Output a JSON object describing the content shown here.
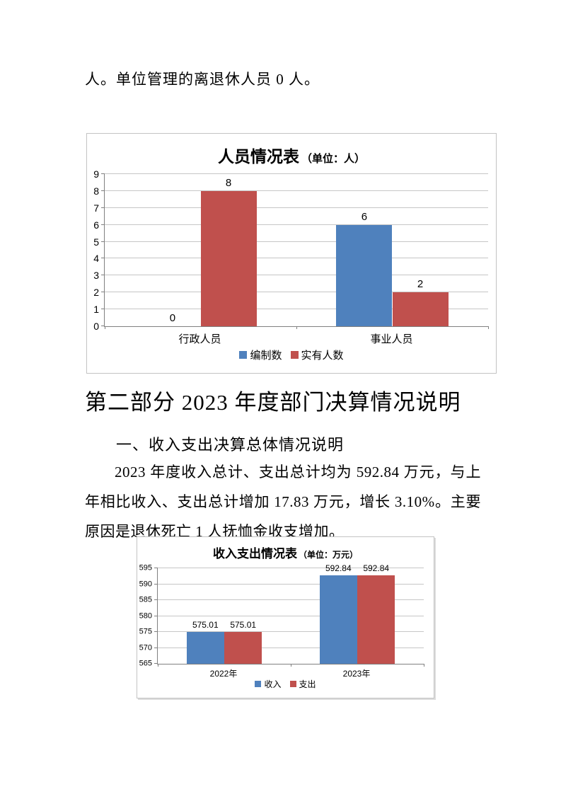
{
  "page": {
    "top_text": "人。单位管理的离退休人员 0 人。",
    "section_heading": "第二部分 2023 年度部门决算情况说明",
    "subsection_heading": "一、收入支出决算总体情况说明",
    "paragraph_lines": [
      "2023 年度收入总计、支出总计均为 592.84 万元，与上",
      "年相比收入、支出总计增加 17.83 万元，增长 3.10%。主要",
      "原因是退休死亡 1 人抚恤金收支增加。"
    ]
  },
  "colors": {
    "series_blue": "#4F81BD",
    "series_red": "#C0504D",
    "gridline": "#C6C6C6",
    "axis": "#808080"
  },
  "chart_data": [
    {
      "type": "bar",
      "title": "人员情况表",
      "title_unit": "（单位：人）",
      "categories": [
        "行政人员",
        "事业人员"
      ],
      "series": [
        {
          "name": "编制数",
          "color": "#4F81BD",
          "values": [
            0,
            6
          ],
          "labels": [
            "0",
            "6"
          ]
        },
        {
          "name": "实有人数",
          "color": "#C0504D",
          "values": [
            8,
            2
          ],
          "labels": [
            "8",
            "2"
          ]
        }
      ],
      "ylim": [
        0,
        9
      ],
      "y_tick_labels": [
        "0",
        "1",
        "2",
        "3",
        "4",
        "5",
        "6",
        "7",
        "8",
        "9"
      ],
      "grid": true,
      "legend_position": "bottom",
      "bar_width_pct": 14.6
    },
    {
      "type": "bar",
      "title": "收入支出情况表",
      "title_unit": "（单位：万元）",
      "categories": [
        "2022年",
        "2023年"
      ],
      "series": [
        {
          "name": "收入",
          "color": "#4F81BD",
          "values": [
            575.01,
            592.84
          ],
          "labels": [
            "575.01",
            "592.84"
          ]
        },
        {
          "name": "支出",
          "color": "#C0504D",
          "values": [
            575.01,
            592.84
          ],
          "labels": [
            "575.01",
            "592.84"
          ]
        }
      ],
      "ylim": [
        565,
        595
      ],
      "y_tick_labels": [
        "565",
        "570",
        "575",
        "580",
        "585",
        "590",
        "595"
      ],
      "grid": true,
      "legend_position": "bottom",
      "bar_width_pct": 14.2
    }
  ]
}
